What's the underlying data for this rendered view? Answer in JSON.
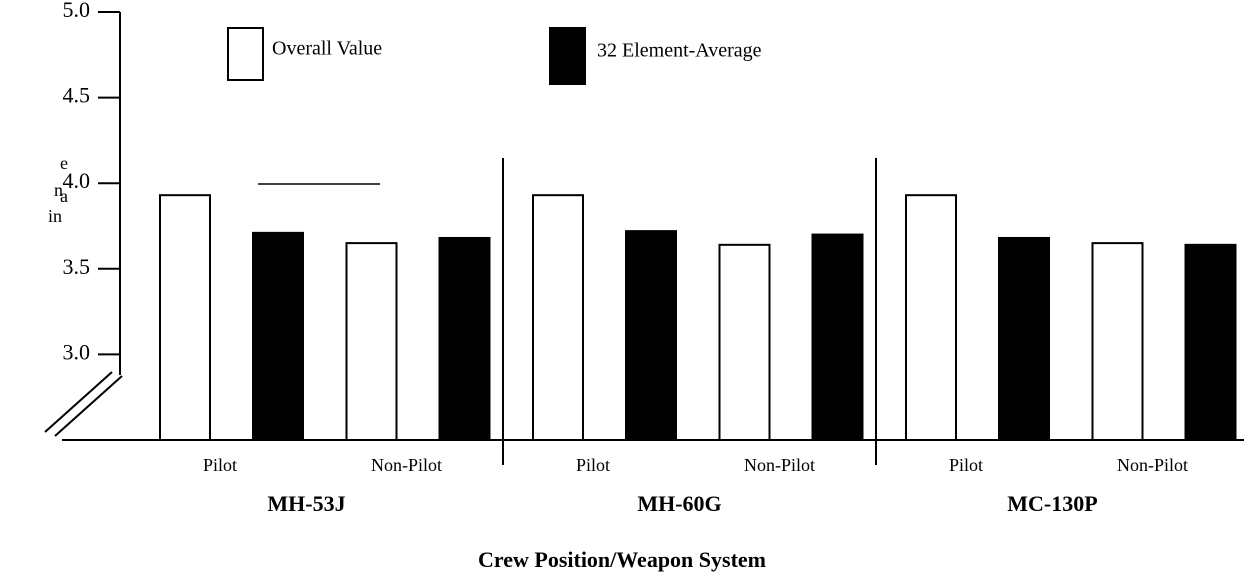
{
  "chart_data": {
    "type": "bar",
    "title": "Crew Position/Weapon System",
    "ylabel_parts": [
      "e",
      "n",
      "a",
      "in"
    ],
    "groups": [
      "MH-53J",
      "MH-60G",
      "MC-130P"
    ],
    "categories": [
      "Pilot",
      "Non-Pilot",
      "Pilot",
      "Non-Pilot",
      "Pilot",
      "Non-Pilot"
    ],
    "series": [
      {
        "name": "Overall Value",
        "color": "#ffffff",
        "values": [
          3.93,
          3.65,
          3.93,
          3.64,
          3.93,
          3.65
        ]
      },
      {
        "name": "32 Element-Average",
        "color": "#000000",
        "values": [
          3.71,
          3.68,
          3.72,
          3.7,
          3.68,
          3.64
        ]
      }
    ],
    "ylim": [
      2.5,
      5.0
    ],
    "yticks": [
      {
        "value": 3.0,
        "label": "3.0"
      },
      {
        "value": 3.5,
        "label": "3.5"
      },
      {
        "value": 4.0,
        "label": "4.0"
      },
      {
        "value": 4.5,
        "label": "4.5"
      },
      {
        "value": 5.0,
        "label": "5.0"
      }
    ],
    "grid": false
  }
}
